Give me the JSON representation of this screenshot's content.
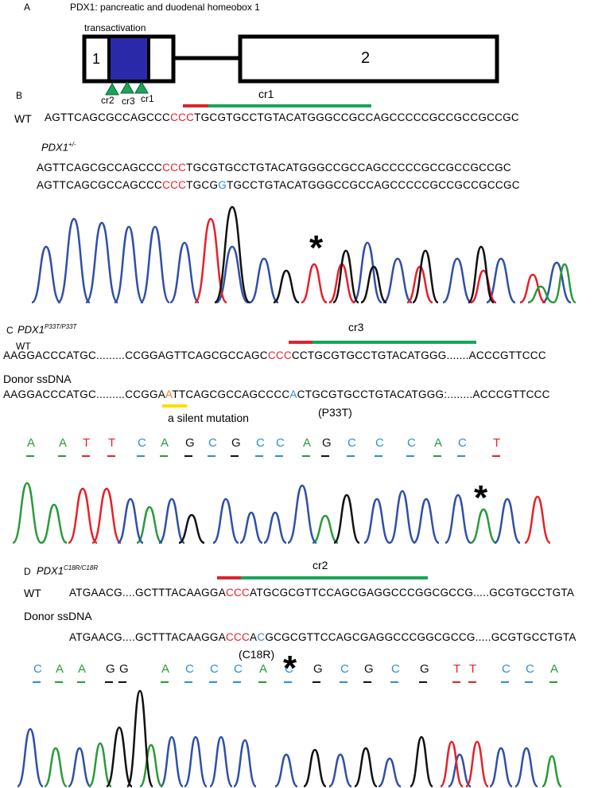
{
  "panels": {
    "a": "A",
    "b": "B",
    "c": "C",
    "d": "D"
  },
  "panel_a": {
    "title": "PDX1: pancreatic and duodenal homeobox 1",
    "transactivation_label": "transactivation",
    "exon1_label": "1",
    "exon2_label": "2",
    "domain_color": "#2a2aa8",
    "arrow_color": "#1aa55a",
    "guides": [
      "cr2",
      "cr3",
      "cr1"
    ]
  },
  "panel_b": {
    "guide_label": "cr1",
    "wt_label": "WT",
    "wt_seq": {
      "pre": "AGTTCAGCGCCAGCCC",
      "pam": "CCC",
      "post": "TGCGTGCCTGTACATGGGCCGCCAGCCCCCGCCGCCGCCGC"
    },
    "genotype": "PDX1",
    "genotype_sup": "+/-",
    "allele1": {
      "pre": "AGTTCAGCGCCAGCCC",
      "pam": "CCC",
      "post": "TGCGTGCCTGTACATGGGCCGCCAGCCCCCGCCGCCGCCGC"
    },
    "allele2": {
      "pre": "AGTTCAGCGCCAGCCC",
      "pam": "CCC",
      "mid": "TGCG",
      "ins": "G",
      "post": "TGCCTGTACATGGGCCGCCAGCCCCCGCCGCCGCCGC"
    },
    "asterisk": "*"
  },
  "panel_c": {
    "genotype": "PDX1",
    "genotype_sup": "P33T/P33T",
    "guide_label": "cr3",
    "wt_label": "WT",
    "wt_seq": {
      "pre": "AAGGACCCATGC.........CCGGAGTTCAGCGCCAGC",
      "pam": "CCC",
      "post": "CCTGCGTGCCTGTACATGGG.......ACCCGTTCCC"
    },
    "donor_label": "Donor ssDNA",
    "donor_seq": {
      "pre": "AAGGACCCATGC.........CCGGA",
      "silent": "A",
      "mid": "TTCAGCGCCAGCCCC",
      "mut": "A",
      "post": "CTGCGTGCCTGTACATGGG:........ACCCGTTCCC"
    },
    "silent_label": "a silent mutation",
    "mutation_label": "(P33T)",
    "trace_bases": [
      "A",
      "A",
      "T",
      "T",
      "C",
      "A",
      "G",
      "C",
      "G",
      "C",
      "C",
      "A",
      "G",
      "C",
      "C",
      "C",
      "A",
      "C",
      "T"
    ],
    "asterisk": "*"
  },
  "panel_d": {
    "genotype": "PDX1",
    "genotype_sup": "C18R/C18R",
    "guide_label": "cr2",
    "wt_label": "WT",
    "wt_seq": {
      "pre": "ATGAACG....GCTTTACAAGGA",
      "pam": "CCC",
      "post": "ATGCGCGTTCCAGCGAGGCCCGGCGCCG.....GCGTGCCTGTA"
    },
    "donor_label": "Donor ssDNA",
    "donor_seq": {
      "pre": "ATGAACG....GCTTTACAAGGA",
      "pam": "CCC",
      "mid": "A",
      "mut": "C",
      "post": "GCGCGTTCCAGCGAGGCCCGGCGCCG.....GCGTGCCTGTA"
    },
    "mutation_label": "(C18R)",
    "trace_bases": [
      "C",
      "A",
      "A",
      "G",
      "G",
      "A",
      "C",
      "C",
      "C",
      "A",
      "C",
      "G",
      "C",
      "G",
      "C",
      "G",
      "T",
      "T",
      "C",
      "C",
      "A"
    ],
    "asterisk": "*"
  },
  "colors": {
    "A": "#2a9a3a",
    "C": "#2b8fd9",
    "G": "#111111",
    "T": "#e8202a",
    "pam_bar": "#d7262c",
    "guide_bar": "#1aa55a",
    "highlight": "#f7e000",
    "trace_blue": "#2f4fa8",
    "trace_red": "#e8202a",
    "trace_green": "#2a9a3a",
    "trace_black": "#111111"
  }
}
